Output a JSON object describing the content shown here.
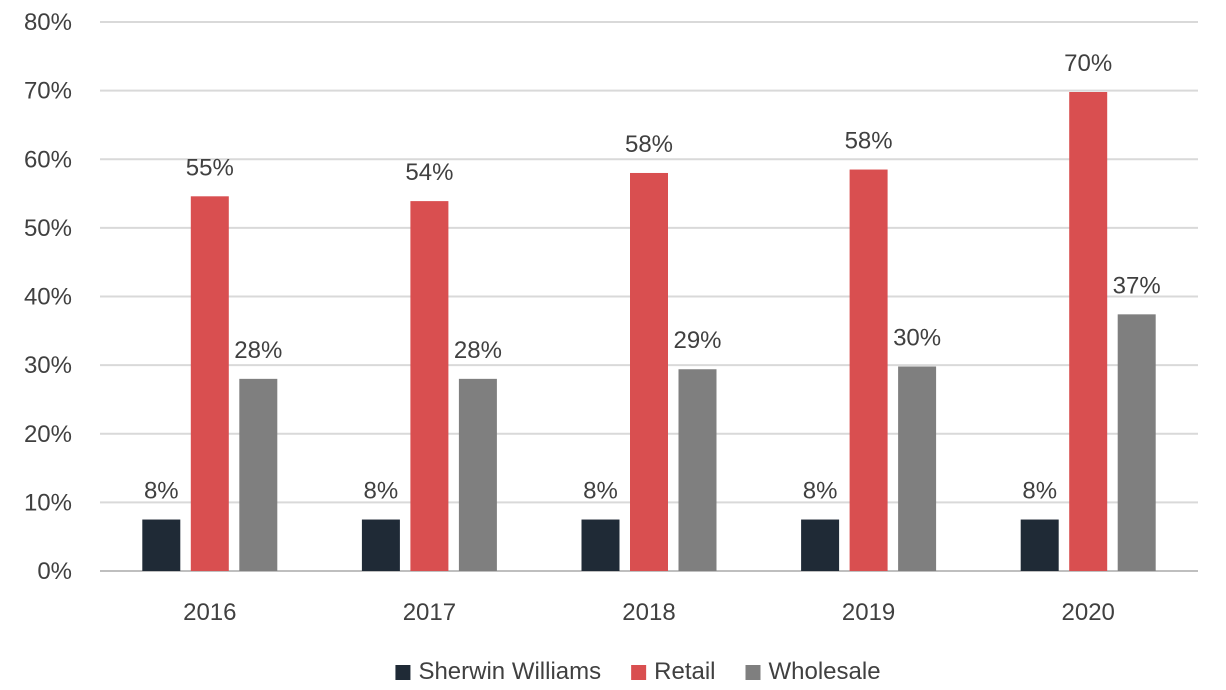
{
  "chart_data": {
    "type": "bar",
    "categories": [
      "2016",
      "2017",
      "2018",
      "2019",
      "2020"
    ],
    "series": [
      {
        "name": "Sherwin Williams",
        "color": "#1f2a36",
        "values": [
          7.5,
          7.5,
          7.5,
          7.5,
          7.5
        ],
        "labels": [
          "8%",
          "8%",
          "8%",
          "8%",
          "8%"
        ]
      },
      {
        "name": "Retail",
        "color": "#d94f50",
        "values": [
          54.6,
          53.9,
          58.0,
          58.5,
          69.8
        ],
        "labels": [
          "55%",
          "54%",
          "58%",
          "58%",
          "70%"
        ]
      },
      {
        "name": "Wholesale",
        "color": "#7f7f7f",
        "values": [
          28.0,
          28.0,
          29.4,
          29.8,
          37.4
        ],
        "labels": [
          "28%",
          "28%",
          "29%",
          "30%",
          "37%"
        ]
      }
    ],
    "ylim": [
      0,
      80
    ],
    "yticks": [
      0,
      10,
      20,
      30,
      40,
      50,
      60,
      70,
      80
    ],
    "ytick_labels": [
      "0%",
      "10%",
      "20%",
      "30%",
      "40%",
      "50%",
      "60%",
      "70%",
      "80%"
    ],
    "grid": true,
    "legend_position": "bottom-center",
    "title": "",
    "xlabel": "",
    "ylabel": ""
  }
}
